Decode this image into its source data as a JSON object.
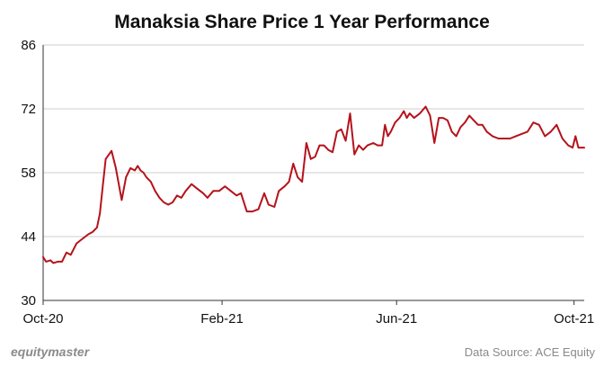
{
  "chart_data": {
    "type": "line",
    "title": "Manaksia Share Price 1 Year Performance",
    "xlabel": "",
    "ylabel": "",
    "ylim": [
      30,
      86
    ],
    "y_ticks": [
      "86",
      "72",
      "58",
      "44",
      "30"
    ],
    "y_tick_values": [
      86,
      72,
      58,
      44,
      30
    ],
    "x_range": [
      "2020-10-01",
      "2021-10-08"
    ],
    "x_ticks": [
      {
        "label": "Oct-20",
        "date": "2020-10-01"
      },
      {
        "label": "Feb-21",
        "date": "2021-02-01"
      },
      {
        "label": "Jun-21",
        "date": "2021-06-01"
      },
      {
        "label": "Oct-21",
        "date": "2021-10-01"
      }
    ],
    "grid": "horizontal",
    "line_color": "#b5121b",
    "series": [
      {
        "x": [
          "2020-10-01",
          "2020-10-03",
          "2020-10-06",
          "2020-10-08",
          "2020-10-11",
          "2020-10-14",
          "2020-10-17",
          "2020-10-20",
          "2020-10-24",
          "2020-10-28",
          "2020-11-01",
          "2020-11-04",
          "2020-11-07",
          "2020-11-09",
          "2020-11-11",
          "2020-11-13",
          "2020-11-17",
          "2020-11-20",
          "2020-11-24",
          "2020-11-27",
          "2020-11-30",
          "2020-12-03",
          "2020-12-05",
          "2020-12-07",
          "2020-12-09",
          "2020-12-11",
          "2020-12-14",
          "2020-12-17",
          "2020-12-20",
          "2020-12-23",
          "2020-12-26",
          "2020-12-29",
          "2021-01-01",
          "2021-01-04",
          "2021-01-07",
          "2021-01-11",
          "2021-01-15",
          "2021-01-19",
          "2021-01-22",
          "2021-01-26",
          "2021-01-30",
          "2021-02-03",
          "2021-02-07",
          "2021-02-11",
          "2021-02-14",
          "2021-02-18",
          "2021-02-22",
          "2021-02-26",
          "2021-03-02",
          "2021-03-05",
          "2021-03-09",
          "2021-03-12",
          "2021-03-16",
          "2021-03-19",
          "2021-03-22",
          "2021-03-25",
          "2021-03-28",
          "2021-03-31",
          "2021-04-03",
          "2021-04-06",
          "2021-04-09",
          "2021-04-12",
          "2021-04-15",
          "2021-04-18",
          "2021-04-21",
          "2021-04-24",
          "2021-04-27",
          "2021-04-30",
          "2021-05-03",
          "2021-05-06",
          "2021-05-09",
          "2021-05-12",
          "2021-05-16",
          "2021-05-19",
          "2021-05-22",
          "2021-05-24",
          "2021-05-26",
          "2021-05-28",
          "2021-05-31",
          "2021-06-03",
          "2021-06-06",
          "2021-06-08",
          "2021-06-10",
          "2021-06-13",
          "2021-06-17",
          "2021-06-21",
          "2021-06-24",
          "2021-06-27",
          "2021-06-30",
          "2021-07-03",
          "2021-07-06",
          "2021-07-09",
          "2021-07-12",
          "2021-07-15",
          "2021-07-18",
          "2021-07-21",
          "2021-07-24",
          "2021-07-27",
          "2021-07-30",
          "2021-08-02",
          "2021-08-06",
          "2021-08-10",
          "2021-08-14",
          "2021-08-18",
          "2021-08-22",
          "2021-08-26",
          "2021-08-30",
          "2021-09-03",
          "2021-09-07",
          "2021-09-11",
          "2021-09-15",
          "2021-09-19",
          "2021-09-23",
          "2021-09-27",
          "2021-09-30",
          "2021-10-02",
          "2021-10-04",
          "2021-10-06",
          "2021-10-08"
        ],
        "values": [
          39.5,
          38.5,
          38.8,
          38.2,
          38.5,
          38.5,
          40.5,
          40.0,
          42.5,
          43.5,
          44.5,
          45.0,
          46.0,
          49.0,
          55.0,
          61.0,
          62.8,
          59.0,
          52.0,
          57.0,
          59.0,
          58.5,
          59.5,
          58.5,
          58.0,
          57.0,
          56.0,
          54.0,
          52.5,
          51.5,
          51.0,
          51.5,
          53.0,
          52.5,
          54.0,
          55.5,
          54.5,
          53.5,
          52.5,
          54.0,
          54.0,
          55.0,
          54.0,
          53.0,
          53.5,
          49.5,
          49.5,
          50.0,
          53.5,
          51.0,
          50.5,
          54.0,
          55.0,
          56.0,
          60.0,
          57.0,
          56.0,
          64.5,
          61.0,
          61.5,
          64.0,
          64.0,
          63.0,
          62.5,
          67.0,
          67.5,
          65.0,
          71.0,
          62.0,
          64.0,
          63.0,
          64.0,
          64.5,
          64.0,
          64.0,
          68.5,
          66.0,
          67.0,
          69.0,
          70.0,
          71.5,
          70.0,
          71.0,
          70.0,
          71.0,
          72.5,
          70.5,
          64.5,
          70.0,
          70.0,
          69.5,
          67.0,
          66.0,
          68.0,
          69.0,
          70.5,
          69.5,
          68.5,
          68.5,
          67.0,
          66.0,
          65.5,
          65.5,
          65.5,
          66.0,
          66.5,
          67.0,
          69.0,
          68.5,
          66.0,
          67.0,
          68.5,
          65.5,
          64.0,
          63.5,
          66.0,
          63.5,
          63.5,
          63.5
        ]
      }
    ],
    "footer": {
      "brand": "equitymaster",
      "source": "Data Source: ACE Equity"
    }
  }
}
